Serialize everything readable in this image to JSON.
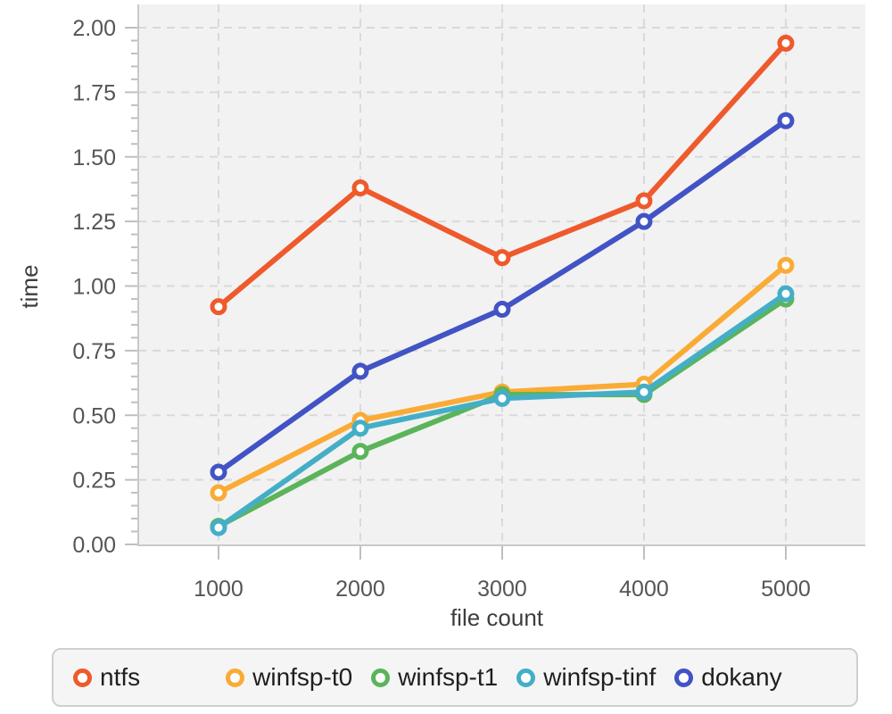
{
  "chart_data": {
    "type": "line",
    "title": "",
    "xlabel": "file count",
    "ylabel": "time",
    "x": [
      1000,
      2000,
      3000,
      4000,
      5000
    ],
    "x_tick_labels": [
      "1000",
      "2000",
      "3000",
      "4000",
      "5000"
    ],
    "y_tick_labels": [
      "0.00",
      "0.25",
      "0.50",
      "0.75",
      "1.00",
      "1.25",
      "1.50",
      "1.75",
      "2.00"
    ],
    "ylim": [
      0,
      2.0
    ],
    "xlim": [
      434,
      5560
    ],
    "y_minor_tick_step": 0.05,
    "grid": true,
    "grid_style": "dashed",
    "legend_position": "bottom",
    "marker": "open-circle",
    "series": [
      {
        "name": "ntfs",
        "color": "#ee5a2c",
        "values": [
          0.92,
          1.38,
          1.11,
          1.33,
          1.94
        ]
      },
      {
        "name": "winfsp-t0",
        "color": "#faab35",
        "values": [
          0.2,
          0.48,
          0.59,
          0.62,
          1.08
        ]
      },
      {
        "name": "winfsp-t1",
        "color": "#5bb45a",
        "values": [
          0.07,
          0.36,
          0.58,
          0.58,
          0.95
        ]
      },
      {
        "name": "winfsp-tinf",
        "color": "#45aec7",
        "values": [
          0.065,
          0.45,
          0.565,
          0.59,
          0.97
        ]
      },
      {
        "name": "dokany",
        "color": "#4253c5",
        "values": [
          0.28,
          0.67,
          0.91,
          1.25,
          1.64
        ]
      }
    ],
    "colors": {
      "plot_background": "#f2f2f2",
      "gridline": "#d9d9d9",
      "axis_line": "#c9c9c9",
      "tick_mark": "#bfbfbf",
      "tick_label": "#555555",
      "axis_label": "#3d3d3d",
      "legend_background": "#f5f5f5",
      "legend_border": "#cfcfcf",
      "legend_text": "#1f1f1f"
    }
  }
}
